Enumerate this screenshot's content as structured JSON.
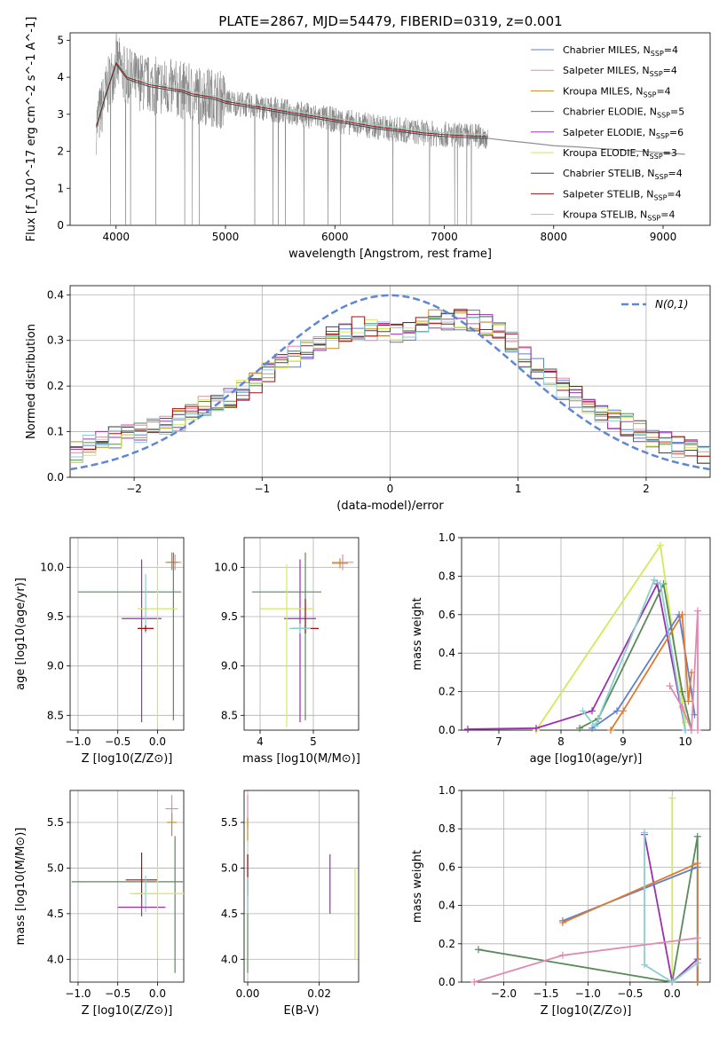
{
  "chart_data": [
    {
      "id": "spectrum",
      "type": "line",
      "title": "PLATE=2867, MJD=54479, FIBERID=0319, z=0.001",
      "xlabel": "wavelength [Angstrom, rest frame]",
      "ylabel": "Flux [f_λ10^-17 erg cm^-2 s^-1 A^-1]",
      "xlim": [
        3580,
        9430
      ],
      "ylim": [
        0,
        5.2
      ],
      "xticks": [
        4000,
        5000,
        6000,
        7000,
        8000,
        9000
      ],
      "yticks": [
        0,
        1,
        2,
        3,
        4,
        5
      ],
      "grid": false,
      "legend_position": "top-right",
      "data": {
        "x": [
          3820,
          3900,
          4000,
          4100,
          4200,
          4300,
          4400,
          4500,
          4600,
          4700,
          4800,
          4900,
          5000,
          5200,
          5400,
          5600,
          5800,
          6000,
          6200,
          6400,
          6600,
          6800,
          7000,
          7200,
          7400
        ],
        "y": [
          2.7,
          3.5,
          4.4,
          4.0,
          3.9,
          3.8,
          3.75,
          3.7,
          3.65,
          3.55,
          3.5,
          3.45,
          3.35,
          3.25,
          3.15,
          3.05,
          2.95,
          2.85,
          2.75,
          2.65,
          2.58,
          2.5,
          2.45,
          2.42,
          2.4
        ]
      },
      "continuum": {
        "x": [
          7400,
          7600,
          7800,
          8000,
          8200,
          8400,
          8600,
          8800,
          9000,
          9200
        ],
        "y": [
          2.35,
          2.28,
          2.22,
          2.15,
          2.12,
          2.08,
          2.04,
          2.0,
          1.96,
          1.92
        ]
      },
      "series": [
        {
          "name": "Chabrier MILES",
          "nssp": "4",
          "color": "#5f7fd0"
        },
        {
          "name": "Salpeter MILES",
          "nssp": "4",
          "color": "#e08ab0"
        },
        {
          "name": "Kroupa MILES",
          "nssp": "4",
          "color": "#c98a1e"
        },
        {
          "name": "Chabrier ELODIE",
          "nssp": "5",
          "color": "#5a8a5a"
        },
        {
          "name": "Salpeter ELODIE",
          "nssp": "6",
          "color": "#9a30b0"
        },
        {
          "name": "Kroupa ELODIE",
          "nssp": "3",
          "color": "#d4e85a"
        },
        {
          "name": "Chabrier STELIB",
          "nssp": "4",
          "color": "#444444"
        },
        {
          "name": "Salpeter STELIB",
          "nssp": "4",
          "color": "#a01010"
        },
        {
          "name": "Kroupa STELIB",
          "nssp": "4",
          "color": "#8ad0d0"
        }
      ]
    },
    {
      "id": "residuals",
      "type": "line",
      "title": "",
      "xlabel": "(data-model)/error",
      "ylabel": "Normed distribution",
      "xlim": [
        -2.5,
        2.5
      ],
      "ylim": [
        0,
        0.42
      ],
      "xticks": [
        -2,
        -1,
        0,
        1,
        2
      ],
      "yticks": [
        0.0,
        0.1,
        0.2,
        0.3,
        0.4
      ],
      "grid": true,
      "legend_position": "top-right",
      "legend": "N(0,1)",
      "gauss_color": "#5f87d7",
      "histogram": {
        "x": [
          -2.5,
          -2.3,
          -2.1,
          -1.9,
          -1.7,
          -1.5,
          -1.3,
          -1.1,
          -0.9,
          -0.7,
          -0.5,
          -0.3,
          -0.1,
          0.1,
          0.3,
          0.5,
          0.7,
          0.9,
          1.1,
          1.3,
          1.5,
          1.7,
          1.9,
          2.1,
          2.3,
          2.5
        ],
        "y": [
          0.05,
          0.08,
          0.09,
          0.1,
          0.12,
          0.15,
          0.17,
          0.2,
          0.24,
          0.27,
          0.3,
          0.33,
          0.32,
          0.32,
          0.34,
          0.35,
          0.34,
          0.31,
          0.25,
          0.2,
          0.17,
          0.13,
          0.11,
          0.08,
          0.06,
          0.05
        ]
      }
    },
    {
      "id": "age-vs-Z",
      "type": "scatter",
      "xlabel": "Z [log10(Z/Z⊙)]",
      "ylabel": "age [log10(age/yr)]",
      "xlim": [
        -1.1,
        0.33
      ],
      "ylim": [
        8.35,
        10.3
      ],
      "xticks": [
        -1.0,
        -0.5,
        0.0
      ],
      "xticklabels": [
        "−1.0",
        "−0.5",
        "0.0"
      ],
      "yticks": [
        8.5,
        9.0,
        9.5,
        10.0
      ],
      "yticklabels": [
        "8.5",
        "9.0",
        "9.5",
        "10.0"
      ],
      "grid": true,
      "errorbars": [
        {
          "x": 0.22,
          "y": 10.05,
          "xerr": [
            0.08,
            0.08
          ],
          "yerr": [
            0.08,
            0.08
          ],
          "color": "#e08ab0"
        },
        {
          "x": 0.18,
          "y": 10.05,
          "xerr": [
            0.08,
            0.08
          ],
          "yerr": [
            0.08,
            0.1
          ],
          "color": "#c98a1e"
        },
        {
          "x": 0.2,
          "y": 9.75,
          "xerr": [
            1.2,
            0.1
          ],
          "yerr": [
            1.3,
            0.4
          ],
          "color": "#5a8a5a"
        },
        {
          "x": -0.2,
          "y": 9.48,
          "xerr": [
            0.25,
            0.25
          ],
          "yerr": [
            1.05,
            0.6
          ],
          "color": "#9a30b0"
        },
        {
          "x": 0.0,
          "y": 9.58,
          "xerr": [
            0.25,
            0.25
          ],
          "yerr": [
            1.2,
            0.45
          ],
          "color": "#d4e85a"
        },
        {
          "x": -0.15,
          "y": 9.38,
          "xerr": [
            0.1,
            0.1
          ],
          "yerr": [
            0.05,
            0.55
          ],
          "color": "#8ad0d0"
        },
        {
          "x": -0.15,
          "y": 9.38,
          "xerr": [
            0.1,
            0.1
          ],
          "yerr": [
            0.03,
            0.03
          ],
          "color": "#a01010"
        }
      ]
    },
    {
      "id": "age-vs-mass",
      "type": "scatter",
      "xlabel": "mass [log10(M/M⊙)]",
      "ylabel": "",
      "xlim": [
        3.7,
        5.85
      ],
      "ylim": [
        8.35,
        10.3
      ],
      "xticks": [
        4,
        5
      ],
      "xticklabels": [
        "4",
        "5"
      ],
      "yticks": [
        8.5,
        9.0,
        9.5,
        10.0
      ],
      "yticklabels": [
        "8.5",
        "9.0",
        "9.5",
        "10.0"
      ],
      "grid": true,
      "errorbars": [
        {
          "x": 5.55,
          "y": 10.05,
          "xerr": [
            0.2,
            0.2
          ],
          "yerr": [
            0.08,
            0.08
          ],
          "color": "#e08ab0"
        },
        {
          "x": 5.5,
          "y": 10.04,
          "xerr": [
            0.15,
            0.15
          ],
          "yerr": [
            0.05,
            0.05
          ],
          "color": "#c98a1e"
        },
        {
          "x": 4.85,
          "y": 9.75,
          "xerr": [
            1.0,
            0.3
          ],
          "yerr": [
            1.3,
            0.4
          ],
          "color": "#5a8a5a"
        },
        {
          "x": 4.75,
          "y": 9.48,
          "xerr": [
            0.3,
            0.3
          ],
          "yerr": [
            1.05,
            0.6
          ],
          "color": "#9a30b0"
        },
        {
          "x": 4.5,
          "y": 9.58,
          "xerr": [
            0.5,
            0.5
          ],
          "yerr": [
            1.2,
            0.45
          ],
          "color": "#d4e85a"
        },
        {
          "x": 4.85,
          "y": 9.38,
          "xerr": [
            0.25,
            0.25
          ],
          "yerr": [
            0.05,
            0.3
          ],
          "color": "#a01010"
        },
        {
          "x": 4.75,
          "y": 9.38,
          "xerr": [
            0.2,
            0.2
          ],
          "yerr": [
            0.05,
            0.05
          ],
          "color": "#8ad0d0"
        }
      ]
    },
    {
      "id": "weight-vs-age",
      "type": "line",
      "xlabel": "age [log10(age/yr)]",
      "ylabel": "mass weight",
      "xlim": [
        6.4,
        10.4
      ],
      "ylim": [
        0,
        1.0
      ],
      "xticks": [
        7,
        8,
        9,
        10
      ],
      "xticklabels": [
        "7",
        "8",
        "9",
        "10"
      ],
      "yticks": [
        0.0,
        0.2,
        0.4,
        0.6,
        0.8,
        1.0
      ],
      "yticklabels": [
        "0.0",
        "0.2",
        "0.4",
        "0.6",
        "0.8",
        "1.0"
      ],
      "grid": true,
      "series": [
        {
          "name": "Kroupa ELODIE",
          "color": "#d4e85a",
          "x": [
            7.6,
            9.6,
            10.0
          ],
          "y": [
            0.0,
            0.96,
            0.04
          ]
        },
        {
          "name": "Salpeter ELODIE",
          "color": "#9a30b0",
          "x": [
            6.5,
            7.6,
            8.5,
            9.55,
            10.0
          ],
          "y": [
            0.005,
            0.01,
            0.1,
            0.76,
            0.0
          ]
        },
        {
          "name": "Chabrier ELODIE",
          "color": "#5a8a5a",
          "x": [
            8.3,
            8.6,
            9.65,
            9.95,
            10.1
          ],
          "y": [
            0.01,
            0.06,
            0.76,
            0.2,
            0.0
          ]
        },
        {
          "name": "Chabrier MILES",
          "color": "#5f7fd0",
          "x": [
            8.5,
            8.9,
            9.9,
            10.1,
            10.15
          ],
          "y": [
            0.01,
            0.1,
            0.6,
            0.2,
            0.08
          ]
        },
        {
          "name": "Kroupa MILES",
          "color": "#e07a30",
          "x": [
            8.8,
            9.0,
            9.95,
            10.05,
            10.1
          ],
          "y": [
            0.0,
            0.1,
            0.6,
            0.15,
            0.3
          ]
        },
        {
          "name": "Kroupa STELIB",
          "color": "#8ad0d0",
          "x": [
            8.35,
            8.55,
            9.5,
            9.6,
            10.0
          ],
          "y": [
            0.1,
            0.02,
            0.78,
            0.76,
            0.0
          ]
        },
        {
          "name": "Salpeter MILES",
          "color": "#e08ab0",
          "x": [
            9.75,
            9.95,
            10.1,
            10.2,
            10.2
          ],
          "y": [
            0.23,
            0.12,
            0.0,
            0.62,
            0.0
          ]
        }
      ]
    },
    {
      "id": "mass-vs-Z",
      "type": "scatter",
      "xlabel": "Z [log10(Z/Z⊙)]",
      "ylabel": "mass [log10(M/M⊙)]",
      "xlim": [
        -1.1,
        0.33
      ],
      "ylim": [
        3.75,
        5.85
      ],
      "xticks": [
        -1.0,
        -0.5,
        0.0
      ],
      "xticklabels": [
        "−1.0",
        "−0.5",
        "0.0"
      ],
      "yticks": [
        4.0,
        4.5,
        5.0,
        5.5
      ],
      "yticklabels": [
        "4.0",
        "4.5",
        "5.0",
        "5.5"
      ],
      "grid": true,
      "errorbars": [
        {
          "x": 0.18,
          "y": 5.65,
          "xerr": [
            0.08,
            0.08
          ],
          "yerr": [
            0.15,
            0.15
          ],
          "color": "#e08ab0"
        },
        {
          "x": 0.18,
          "y": 5.5,
          "xerr": [
            0.06,
            0.06
          ],
          "yerr": [
            0.15,
            0.1
          ],
          "color": "#c98a1e"
        },
        {
          "x": 0.22,
          "y": 4.85,
          "xerr": [
            1.3,
            0.1
          ],
          "yerr": [
            1.0,
            0.5
          ],
          "color": "#5a8a5a"
        },
        {
          "x": -0.2,
          "y": 4.87,
          "xerr": [
            0.2,
            0.2
          ],
          "yerr": [
            0.3,
            0.3
          ],
          "color": "#a01010"
        },
        {
          "x": -0.15,
          "y": 4.72,
          "xerr": [
            0.15,
            0.15
          ],
          "yerr": [
            0.2,
            0.2
          ],
          "color": "#8ad0d0"
        },
        {
          "x": -0.2,
          "y": 4.57,
          "xerr": [
            0.3,
            0.3
          ],
          "yerr": [
            0.1,
            0.1
          ],
          "color": "#9a30b0"
        },
        {
          "x": 0.0,
          "y": 4.72,
          "xerr": [
            0.35,
            0.35
          ],
          "yerr": [
            0.7,
            0.3
          ],
          "color": "#d4e85a"
        }
      ]
    },
    {
      "id": "mass-vs-ebv",
      "type": "scatter",
      "xlabel": "E(B-V)",
      "ylabel": "",
      "xlim": [
        -0.001,
        0.031
      ],
      "ylim": [
        3.75,
        5.85
      ],
      "xticks": [
        0.0,
        0.02
      ],
      "xticklabels": [
        "0.00",
        "0.02"
      ],
      "yticks": [
        4.0,
        4.5,
        5.0,
        5.5
      ],
      "yticklabels": [
        "4.0",
        "4.5",
        "5.0",
        "5.5"
      ],
      "grid": true,
      "errorbars": [
        {
          "x": 0.0,
          "y": 5.6,
          "xerr": [
            0,
            0
          ],
          "yerr": [
            0.15,
            0.2
          ],
          "color": "#e08ab0"
        },
        {
          "x": 0.0,
          "y": 5.45,
          "xerr": [
            0,
            0
          ],
          "yerr": [
            0.15,
            0.1
          ],
          "color": "#c98a1e"
        },
        {
          "x": 0.0,
          "y": 4.85,
          "xerr": [
            0,
            0
          ],
          "yerr": [
            1.0,
            0.3
          ],
          "color": "#5a8a5a"
        },
        {
          "x": 0.0,
          "y": 4.9,
          "xerr": [
            0,
            0
          ],
          "yerr": [
            0.2,
            0.25
          ],
          "color": "#a01010"
        },
        {
          "x": 0.0,
          "y": 4.7,
          "xerr": [
            0,
            0
          ],
          "yerr": [
            0.2,
            0.2
          ],
          "color": "#8ad0d0"
        },
        {
          "x": 0.023,
          "y": 4.8,
          "xerr": [
            0,
            0
          ],
          "yerr": [
            0.3,
            0.35
          ],
          "color": "#9a30b0"
        },
        {
          "x": 0.03,
          "y": 4.5,
          "xerr": [
            0,
            0
          ],
          "yerr": [
            0.5,
            0.5
          ],
          "color": "#d4e85a"
        }
      ]
    },
    {
      "id": "weight-vs-Z",
      "type": "line",
      "xlabel": "Z [log10(Z/Z⊙)]",
      "ylabel": "mass weight",
      "xlim": [
        -2.5,
        0.45
      ],
      "ylim": [
        0,
        1.0
      ],
      "xticks": [
        -2.0,
        -1.5,
        -1.0,
        -0.5,
        0.0
      ],
      "xticklabels": [
        "−2.0",
        "−1.5",
        "−1.0",
        "−0.5",
        "0.0"
      ],
      "yticks": [
        0.0,
        0.2,
        0.4,
        0.6,
        0.8,
        1.0
      ],
      "yticklabels": [
        "0.0",
        "0.2",
        "0.4",
        "0.6",
        "0.8",
        "1.0"
      ],
      "grid": true,
      "series": [
        {
          "name": "Kroupa ELODIE",
          "color": "#d4e85a",
          "x": [
            0.0,
            0.0
          ],
          "y": [
            0.96,
            0.0
          ]
        },
        {
          "name": "Salpeter ELODIE",
          "color": "#9a30b0",
          "x": [
            -0.33,
            0.0,
            0.3,
            0.3
          ],
          "y": [
            0.77,
            0.0,
            0.12,
            0.0
          ]
        },
        {
          "name": "Chabrier ELODIE",
          "color": "#5a8a5a",
          "x": [
            -2.3,
            0.0,
            0.3,
            0.3
          ],
          "y": [
            0.17,
            0.0,
            0.76,
            0.0
          ]
        },
        {
          "name": "Chabrier MILES",
          "color": "#5f7fd0",
          "x": [
            -1.3,
            0.3,
            0.3
          ],
          "y": [
            0.32,
            0.6,
            0.0
          ]
        },
        {
          "name": "Kroupa MILES",
          "color": "#e07a30",
          "x": [
            -1.3,
            0.3,
            0.3
          ],
          "y": [
            0.31,
            0.62,
            0.0
          ]
        },
        {
          "name": "Kroupa STELIB",
          "color": "#8ad0d0",
          "x": [
            -0.33,
            -0.33,
            0.0,
            0.3
          ],
          "y": [
            0.78,
            0.09,
            0.0,
            0.1
          ]
        },
        {
          "name": "Salpeter MILES",
          "color": "#e08ab0",
          "x": [
            -2.35,
            -1.3,
            0.3
          ],
          "y": [
            0.0,
            0.14,
            0.23
          ]
        }
      ]
    }
  ]
}
